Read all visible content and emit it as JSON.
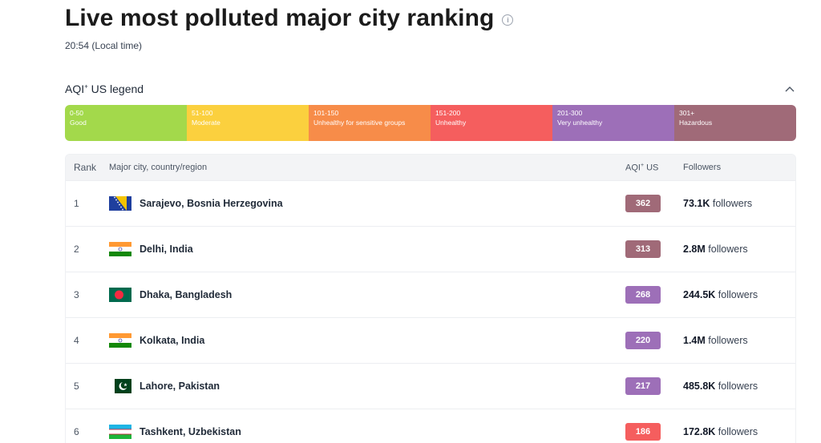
{
  "page": {
    "title": "Live most polluted major city ranking",
    "info_icon": "info-icon",
    "time": "20:54 (Local time)"
  },
  "legend": {
    "title_prefix": "AQI",
    "title_sup": "+",
    "title_suffix": " US legend",
    "collapse_icon": "chevron-up-icon",
    "segments": [
      {
        "range": "0-50",
        "label": "Good",
        "color": "#a3d94b"
      },
      {
        "range": "51-100",
        "label": "Moderate",
        "color": "#fbd03e"
      },
      {
        "range": "101-150",
        "label": "Unhealthy for sensitive groups",
        "color": "#f78c49"
      },
      {
        "range": "151-200",
        "label": "Unhealthy",
        "color": "#f55e5e"
      },
      {
        "range": "201-300",
        "label": "Very unhealthy",
        "color": "#9d6fb8"
      },
      {
        "range": "301+",
        "label": "Hazardous",
        "color": "#a06a78"
      }
    ]
  },
  "table": {
    "headers": {
      "rank": "Rank",
      "city": "Major city, country/region",
      "aqi_prefix": "AQI",
      "aqi_sup": "+",
      "aqi_suffix": " US",
      "followers": "Followers"
    },
    "rows": [
      {
        "rank": "1",
        "city": "Sarajevo, Bosnia Herzegovina",
        "flag": "bosnia-flag-icon",
        "aqi": "362",
        "aqi_color": "#a06a78",
        "followers_num": "73.1K",
        "followers_word": "followers"
      },
      {
        "rank": "2",
        "city": "Delhi, India",
        "flag": "india-flag-icon",
        "aqi": "313",
        "aqi_color": "#a06a78",
        "followers_num": "2.8M",
        "followers_word": "followers"
      },
      {
        "rank": "3",
        "city": "Dhaka, Bangladesh",
        "flag": "bangladesh-flag-icon",
        "aqi": "268",
        "aqi_color": "#9d6fb8",
        "followers_num": "244.5K",
        "followers_word": "followers"
      },
      {
        "rank": "4",
        "city": "Kolkata, India",
        "flag": "india-flag-icon",
        "aqi": "220",
        "aqi_color": "#9d6fb8",
        "followers_num": "1.4M",
        "followers_word": "followers"
      },
      {
        "rank": "5",
        "city": "Lahore, Pakistan",
        "flag": "pakistan-flag-icon",
        "aqi": "217",
        "aqi_color": "#9d6fb8",
        "followers_num": "485.8K",
        "followers_word": "followers"
      },
      {
        "rank": "6",
        "city": "Tashkent, Uzbekistan",
        "flag": "uzbekistan-flag-icon",
        "aqi": "186",
        "aqi_color": "#f55e5e",
        "followers_num": "172.8K",
        "followers_word": "followers"
      }
    ]
  }
}
